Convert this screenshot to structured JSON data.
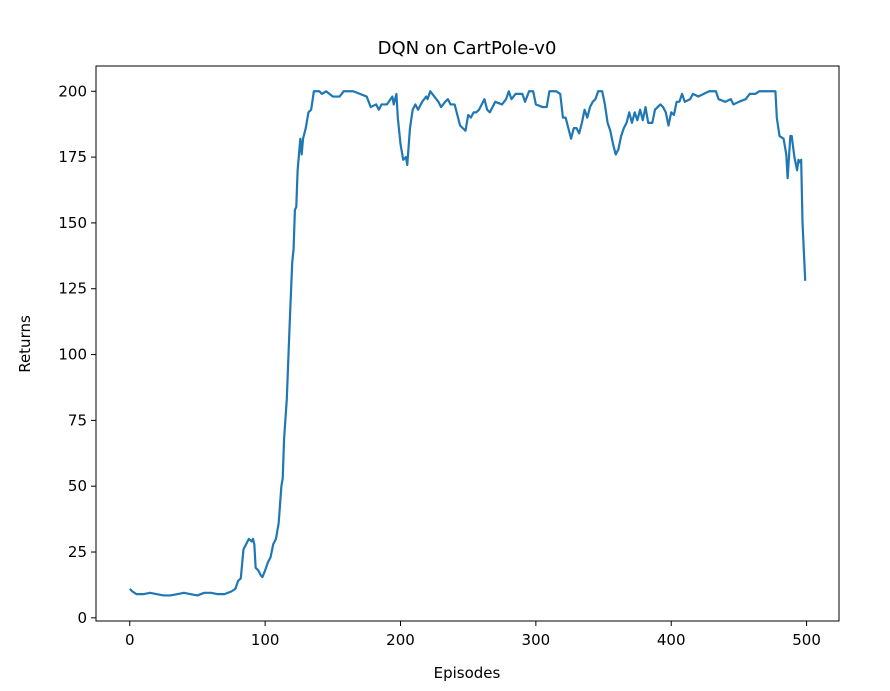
{
  "chart_data": {
    "type": "line",
    "title": "DQN on CartPole-v0",
    "x_label": "Episodes",
    "y_label": "Returns",
    "xlim": [
      -24.95,
      523.95
    ],
    "ylim": [
      -1.2,
      209.6
    ],
    "xticks": [
      0,
      100,
      200,
      300,
      400,
      500
    ],
    "yticks": [
      0,
      25,
      50,
      75,
      100,
      125,
      150,
      175,
      200
    ],
    "x": [
      0,
      2,
      5,
      10,
      15,
      20,
      25,
      30,
      35,
      40,
      45,
      50,
      55,
      60,
      65,
      70,
      75,
      78,
      80,
      82,
      84,
      86,
      88,
      90,
      91,
      92,
      93,
      95,
      97,
      98,
      100,
      102,
      104,
      106,
      108,
      110,
      112,
      113,
      114,
      116,
      118,
      120,
      121,
      122,
      123,
      124,
      126,
      127,
      128,
      130,
      132,
      134,
      136,
      140,
      142,
      145,
      150,
      155,
      158,
      165,
      170,
      175,
      178,
      182,
      184,
      186,
      190,
      194,
      195,
      197,
      198,
      200,
      202,
      204,
      205,
      207,
      209,
      211,
      213,
      216,
      219,
      220,
      222,
      225,
      228,
      230,
      233,
      235,
      237,
      240,
      242,
      244,
      246,
      248,
      250,
      252,
      254,
      256,
      258,
      260,
      262,
      264,
      266,
      270,
      275,
      278,
      280,
      282,
      285,
      290,
      292,
      295,
      298,
      300,
      305,
      308,
      310,
      315,
      318,
      320,
      322,
      324,
      326,
      328,
      330,
      332,
      334,
      336,
      338,
      340,
      342,
      344,
      346,
      349,
      351,
      353,
      355,
      357,
      359,
      361,
      363,
      365,
      367,
      369,
      371,
      373,
      375,
      377,
      379,
      381,
      383,
      386,
      388,
      390,
      392,
      394,
      396,
      398,
      400,
      402,
      404,
      406,
      408,
      410,
      414,
      416,
      420,
      424,
      428,
      433,
      435,
      440,
      444,
      446,
      450,
      455,
      458,
      462,
      465,
      470,
      474,
      477,
      478,
      480,
      483,
      485,
      486,
      488,
      489,
      491,
      493,
      494,
      495,
      496,
      497,
      499
    ],
    "series": [
      {
        "name": "Returns",
        "color": "#1f77b4",
        "values": [
          11,
          10,
          9,
          9,
          9.5,
          9,
          8.5,
          8.5,
          9,
          9.5,
          9,
          8.5,
          9.5,
          9.5,
          9,
          9,
          10,
          11,
          14,
          15,
          26,
          28,
          30,
          29,
          30,
          28,
          19,
          18,
          16,
          15.5,
          18,
          21,
          23,
          28,
          30,
          36,
          50,
          53,
          68,
          83,
          110,
          135,
          140,
          155,
          156,
          170,
          182,
          176,
          182,
          186,
          192,
          193,
          200,
          200,
          199,
          200,
          198,
          198,
          200,
          200,
          199,
          198,
          194,
          195,
          193,
          195,
          195,
          198,
          195,
          199,
          190,
          180,
          174,
          175,
          172,
          186,
          193,
          195,
          193,
          196,
          198,
          197,
          200,
          198,
          196,
          194,
          196,
          197,
          195,
          195,
          191,
          187,
          186,
          185,
          191,
          190,
          192,
          192,
          193,
          195,
          197,
          193,
          192,
          196,
          195,
          197,
          200,
          197,
          199,
          199,
          196,
          200,
          200,
          195,
          194,
          194,
          200,
          200,
          199,
          190,
          190,
          186,
          182,
          186,
          186,
          184,
          188,
          193,
          190,
          194,
          196,
          197,
          200,
          200,
          195,
          188,
          185,
          180,
          176,
          178,
          183,
          186,
          188,
          192,
          188,
          192,
          189,
          193,
          189,
          194,
          188,
          188,
          193,
          194,
          195,
          194,
          192,
          187,
          192,
          191,
          196,
          196,
          199,
          196,
          197,
          199,
          198,
          199,
          200,
          200,
          197,
          196,
          197,
          195,
          196,
          197,
          199,
          199,
          200,
          200,
          200,
          200,
          190,
          183,
          182,
          176,
          167,
          183,
          183,
          175,
          170,
          174,
          173,
          174,
          150,
          128
        ]
      }
    ]
  }
}
